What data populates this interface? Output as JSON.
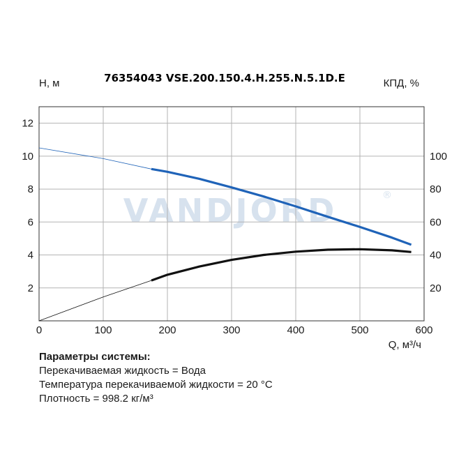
{
  "chart_data": {
    "type": "line",
    "title": "76354043 VSE.200.150.4.H.255.N.5.1D.E",
    "ylabel_left": "H, м",
    "ylabel_right": "КПД, %",
    "xlabel": "Q, м³/ч",
    "xlim": [
      0,
      600
    ],
    "ylim_left": [
      0,
      13
    ],
    "ylim_right": [
      0,
      130
    ],
    "xticks": [
      "0",
      "100",
      "200",
      "300",
      "400",
      "500",
      "600"
    ],
    "yticks_left": [
      "2",
      "4",
      "6",
      "8",
      "10",
      "12"
    ],
    "yticks_right": [
      "20",
      "40",
      "60",
      "80",
      "100"
    ],
    "grid": true,
    "series": [
      {
        "axis": "left",
        "color": "#1f63b8",
        "thin_x": [
          0,
          100,
          175
        ],
        "thin_y": [
          10.5,
          9.85,
          9.22
        ],
        "x": [
          175,
          200,
          250,
          300,
          350,
          400,
          450,
          500,
          550,
          580
        ],
        "y": [
          9.22,
          9.05,
          8.62,
          8.1,
          7.55,
          6.95,
          6.32,
          5.7,
          5.05,
          4.62
        ]
      },
      {
        "axis": "right",
        "color": "#111111",
        "thin_x": [
          0,
          100,
          175
        ],
        "thin_y": [
          0,
          14.5,
          24.5
        ],
        "x": [
          175,
          200,
          250,
          300,
          350,
          400,
          450,
          500,
          550,
          580
        ],
        "y": [
          24.5,
          28,
          33,
          37,
          40,
          42,
          43.2,
          43.5,
          42.8,
          41.8
        ]
      }
    ]
  },
  "watermark": {
    "text": "VANDJORD",
    "mark": "®"
  },
  "params": {
    "heading": "Параметры системы:",
    "liquid": "Перекачиваемая жидкость = Вода",
    "temperature": "Температура перекачиваемой жидкости = 20 °C",
    "density": "Плотность = 998.2 кг/м³"
  }
}
